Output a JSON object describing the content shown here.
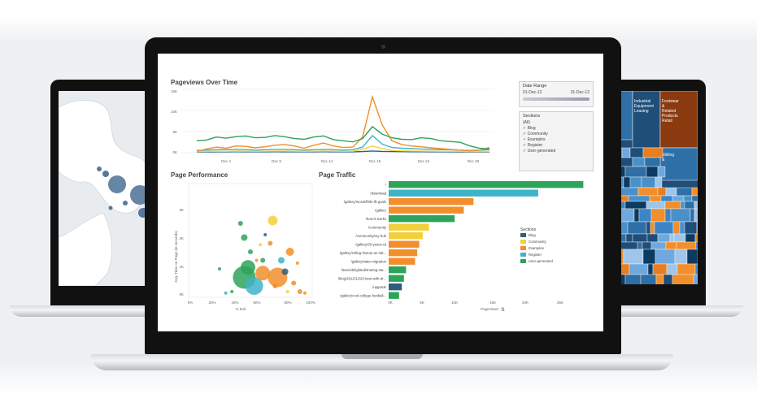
{
  "dashboard": {
    "pageviews": {
      "title": "Pageviews Over Time",
      "y_ticks": [
        "15K",
        "10K",
        "5K",
        "0K"
      ],
      "x_ticks": [
        "Dec 4",
        "Dec 9",
        "Dec 14",
        "Dec 19",
        "Dec 24",
        "Dec 29"
      ]
    },
    "date_range": {
      "title": "Date Range",
      "start": "01-Dec-12",
      "end": "31-Dec-12"
    },
    "sections_filter": {
      "title": "Sections",
      "items": [
        "(All)",
        "Blog",
        "Community",
        "Examples",
        "Register",
        "User-generated"
      ]
    },
    "page_performance": {
      "title": "Page Performance",
      "y_label": "Avg. Time on Page (in seconds)",
      "y_ticks": [
        "4K",
        "3K",
        "2K",
        "1K",
        "0K"
      ],
      "x_ticks": [
        "0%",
        "20%",
        "40%",
        "60%",
        "80%",
        "100%"
      ],
      "x_label": "% Exit"
    },
    "page_traffic": {
      "title": "Page Traffic",
      "x_label": "Pageviews",
      "x_ticks": [
        "0K",
        "5K",
        "10K",
        "15K",
        "20K",
        "25K"
      ],
      "legend_title": "Sections",
      "legend": [
        "Blog",
        "Community",
        "Examples",
        "Register",
        "User-generated"
      ]
    },
    "treemap": {
      "labels": [
        "Industrial Equipment Leasing",
        "Footwear & Related Products Retail",
        "Sibling &"
      ]
    }
  },
  "colors": {
    "blog": "#2e5e7e",
    "community": "#f2d03b",
    "examples": "#f28e2b",
    "register": "#3fb3c9",
    "user_generated": "#2ea35a"
  },
  "chart_data": [
    {
      "type": "line",
      "title": "Pageviews Over Time",
      "x": [
        "Dec 1",
        "Dec 2",
        "Dec 3",
        "Dec 4",
        "Dec 5",
        "Dec 6",
        "Dec 7",
        "Dec 8",
        "Dec 9",
        "Dec 10",
        "Dec 11",
        "Dec 12",
        "Dec 13",
        "Dec 14",
        "Dec 15",
        "Dec 16",
        "Dec 17",
        "Dec 18",
        "Dec 19",
        "Dec 20",
        "Dec 21",
        "Dec 22",
        "Dec 23",
        "Dec 24",
        "Dec 25",
        "Dec 26",
        "Dec 27",
        "Dec 28",
        "Dec 29",
        "Dec 30",
        "Dec 31"
      ],
      "ylim": [
        0,
        17000
      ],
      "series": [
        {
          "name": "User-generated",
          "values": [
            3200,
            3400,
            4200,
            3900,
            4300,
            4500,
            4000,
            4100,
            4600,
            4300,
            3800,
            3600,
            4200,
            4500,
            3500,
            3200,
            2900,
            3800,
            7000,
            5000,
            4000,
            3600,
            3500,
            4000,
            3800,
            3200,
            3000,
            2800,
            1800,
            1200,
            1000
          ]
        },
        {
          "name": "Examples",
          "values": [
            400,
            1000,
            1500,
            1200,
            1800,
            1700,
            1300,
            1600,
            2000,
            2200,
            1800,
            1200,
            2000,
            2600,
            1800,
            1400,
            1500,
            4200,
            15000,
            7500,
            3200,
            2200,
            1800,
            1600,
            1300,
            1100,
            900,
            700,
            500,
            700,
            1400
          ]
        },
        {
          "name": "Register",
          "values": [
            600,
            700,
            800,
            800,
            900,
            800,
            700,
            800,
            900,
            900,
            800,
            700,
            800,
            900,
            800,
            700,
            800,
            1500,
            4600,
            2300,
            1400,
            1200,
            1100,
            1000,
            900,
            800,
            800,
            700,
            600,
            700,
            800
          ]
        },
        {
          "name": "Community",
          "values": [
            300,
            350,
            400,
            380,
            420,
            400,
            380,
            400,
            420,
            410,
            400,
            380,
            400,
            420,
            400,
            380,
            400,
            900,
            1800,
            1100,
            600,
            500,
            450,
            420,
            400,
            380,
            360,
            340,
            320,
            330,
            340
          ]
        },
        {
          "name": "Blog",
          "values": [
            200,
            220,
            250,
            240,
            260,
            250,
            240,
            250,
            260,
            250,
            240,
            230,
            250,
            260,
            250,
            240,
            250,
            300,
            450,
            350,
            300,
            280,
            270,
            260,
            250,
            240,
            230,
            220,
            210,
            220,
            230
          ]
        }
      ]
    },
    {
      "type": "scatter",
      "title": "Page Performance",
      "xlabel": "% Exit",
      "ylabel": "Avg. Time on Page (in seconds)",
      "xlim": [
        0,
        100
      ],
      "ylim": [
        0,
        4000
      ],
      "points": [
        {
          "x": 45,
          "y": 700,
          "size": 14,
          "section": "User-generated"
        },
        {
          "x": 48,
          "y": 1050,
          "size": 9,
          "section": "User-generated"
        },
        {
          "x": 53,
          "y": 400,
          "size": 11,
          "section": "Register"
        },
        {
          "x": 60,
          "y": 850,
          "size": 9,
          "section": "Examples"
        },
        {
          "x": 72,
          "y": 700,
          "size": 12,
          "section": "Examples"
        },
        {
          "x": 82,
          "y": 1600,
          "size": 5,
          "section": "Examples"
        },
        {
          "x": 78,
          "y": 900,
          "size": 4,
          "section": "Blog"
        },
        {
          "x": 68,
          "y": 2700,
          "size": 6,
          "section": "Community"
        },
        {
          "x": 45,
          "y": 2100,
          "size": 4,
          "section": "User-generated"
        },
        {
          "x": 42,
          "y": 2600,
          "size": 3,
          "section": "User-generated"
        },
        {
          "x": 50,
          "y": 1600,
          "size": 3,
          "section": "User-generated"
        },
        {
          "x": 60,
          "y": 1300,
          "size": 3,
          "section": "User-generated"
        },
        {
          "x": 75,
          "y": 1300,
          "size": 4,
          "section": "Register"
        },
        {
          "x": 85,
          "y": 500,
          "size": 3,
          "section": "Examples"
        },
        {
          "x": 90,
          "y": 200,
          "size": 3,
          "section": "Examples"
        },
        {
          "x": 66,
          "y": 1900,
          "size": 3,
          "section": "Examples"
        },
        {
          "x": 70,
          "y": 400,
          "size": 3,
          "section": "Examples"
        },
        {
          "x": 25,
          "y": 1000,
          "size": 2,
          "section": "User-generated"
        },
        {
          "x": 35,
          "y": 200,
          "size": 2,
          "section": "User-generated"
        },
        {
          "x": 58,
          "y": 1850,
          "size": 2,
          "section": "Community"
        },
        {
          "x": 62,
          "y": 2200,
          "size": 2,
          "section": "Blog"
        },
        {
          "x": 88,
          "y": 1200,
          "size": 2,
          "section": "Examples"
        },
        {
          "x": 80,
          "y": 200,
          "size": 2,
          "section": "Community"
        },
        {
          "x": 55,
          "y": 1300,
          "size": 2,
          "section": "Examples"
        },
        {
          "x": 30,
          "y": 150,
          "size": 2,
          "section": "Register"
        },
        {
          "x": 94,
          "y": 150,
          "size": 2,
          "section": "Examples"
        }
      ]
    },
    {
      "type": "bar",
      "title": "Page Traffic",
      "orientation": "horizontal",
      "xlabel": "Pageviews",
      "xlim": [
        0,
        29000
      ],
      "categories": [
        "/",
        "/download",
        "/gallery/mosel/lf3fe-lft-goals",
        "/gallery",
        "/how-it-works",
        "/community",
        "/community/my-hub",
        "/gallery/30-years-cd",
        "/gallery/rolling-history-as-xbt...",
        "/gallery/state-migration",
        "/learn/delighted/sharing-sta...",
        "/blog/2012/12/20-best-with-dr...",
        "/upgrade",
        "/gallery/cool-college-football..."
      ],
      "values": [
        28000,
        21500,
        12200,
        10800,
        9500,
        5800,
        4900,
        4400,
        4100,
        3800,
        2500,
        2200,
        1900,
        1500
      ],
      "sections": [
        "User-generated",
        "Register",
        "Examples",
        "Examples",
        "User-generated",
        "Community",
        "Community",
        "Examples",
        "Examples",
        "Examples",
        "User-generated",
        "User-generated",
        "Blog",
        "User-generated"
      ]
    }
  ]
}
